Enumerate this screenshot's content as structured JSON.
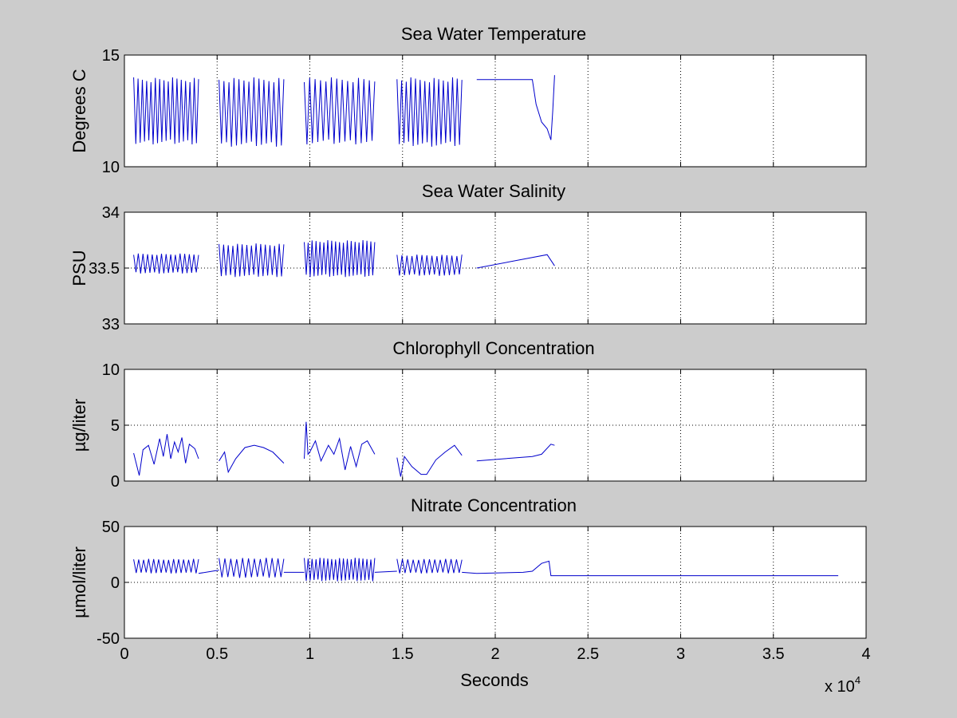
{
  "figure": {
    "background": "#cccccc",
    "axes_background": "#ffffff",
    "line_color": "#0000cc",
    "xlabel": "Seconds",
    "x_exponent_base": "x 10",
    "x_exponent_power": "4"
  },
  "chart_data": [
    {
      "type": "line",
      "title": "Sea Water Temperature",
      "ylabel": "Degrees C",
      "xlim": [
        0,
        40000
      ],
      "ylim": [
        10,
        15
      ],
      "xticks": [
        0,
        5000,
        10000,
        15000,
        20000,
        25000,
        30000,
        35000,
        40000
      ],
      "yticks": [
        10,
        15
      ],
      "ytick_labels": [
        "10",
        "15"
      ],
      "grid": true,
      "segments": [
        {
          "kind": "osc",
          "x": [
            500,
            4000
          ],
          "cycles": 15,
          "low": 11.0,
          "high": 14.0
        },
        {
          "kind": "osc",
          "x": [
            5100,
            8600
          ],
          "cycles": 13,
          "low": 10.9,
          "high": 14.0
        },
        {
          "kind": "osc",
          "x": [
            9700,
            13500
          ],
          "cycles": 13,
          "low": 11.0,
          "high": 14.0
        },
        {
          "kind": "osc",
          "x": [
            14700,
            18200
          ],
          "cycles": 14,
          "low": 10.9,
          "high": 14.0
        },
        {
          "kind": "line",
          "x": [
            19000,
            21500,
            22000,
            22200,
            22500,
            22800,
            23000,
            23100,
            23200
          ],
          "y": [
            13.9,
            13.9,
            13.9,
            12.8,
            12.0,
            11.7,
            11.2,
            12.5,
            14.1
          ]
        }
      ]
    },
    {
      "type": "line",
      "title": "Sea Water Salinity",
      "ylabel": "PSU",
      "xlim": [
        0,
        40000
      ],
      "ylim": [
        33,
        34
      ],
      "xticks": [
        0,
        5000,
        10000,
        15000,
        20000,
        25000,
        30000,
        35000,
        40000
      ],
      "yticks": [
        33,
        33.5,
        34
      ],
      "ytick_labels": [
        "33",
        "33.5",
        "34"
      ],
      "grid": true,
      "segments": [
        {
          "kind": "osc",
          "x": [
            500,
            4000
          ],
          "cycles": 14,
          "low": 33.45,
          "high": 33.63
        },
        {
          "kind": "osc",
          "x": [
            5100,
            8600
          ],
          "cycles": 14,
          "low": 33.42,
          "high": 33.72
        },
        {
          "kind": "osc",
          "x": [
            9700,
            13500
          ],
          "cycles": 18,
          "low": 33.42,
          "high": 33.75
        },
        {
          "kind": "osc",
          "x": [
            14700,
            18200
          ],
          "cycles": 13,
          "low": 33.43,
          "high": 33.62
        },
        {
          "kind": "line",
          "x": [
            19000,
            22800,
            23200
          ],
          "y": [
            33.5,
            33.62,
            33.52
          ]
        }
      ]
    },
    {
      "type": "line",
      "title": "Chlorophyll Concentration",
      "ylabel": "µg/liter",
      "xlim": [
        0,
        40000
      ],
      "ylim": [
        0,
        10
      ],
      "xticks": [
        0,
        5000,
        10000,
        15000,
        20000,
        25000,
        30000,
        35000,
        40000
      ],
      "yticks": [
        0,
        5,
        10
      ],
      "ytick_labels": [
        "0",
        "5",
        "10"
      ],
      "grid": true,
      "segments": [
        {
          "kind": "line",
          "x": [
            500,
            800,
            1000,
            1300,
            1600,
            1900,
            2100,
            2300,
            2500,
            2700,
            2900,
            3100,
            3300,
            3500,
            3800,
            4000
          ],
          "y": [
            2.5,
            0.5,
            2.8,
            3.2,
            1.5,
            3.8,
            2.2,
            4.2,
            2.0,
            3.5,
            2.6,
            3.9,
            1.6,
            3.3,
            2.9,
            2.0
          ]
        },
        {
          "kind": "line",
          "x": [
            5100,
            5400,
            5600,
            6000,
            6500,
            7000,
            7500,
            8000,
            8600
          ],
          "y": [
            1.8,
            2.6,
            0.8,
            2.0,
            3.0,
            3.2,
            3.0,
            2.6,
            1.6
          ]
        },
        {
          "kind": "line",
          "x": [
            9700,
            9800,
            9900,
            10000,
            10300,
            10600,
            11000,
            11300,
            11600,
            11900,
            12200,
            12500,
            12800,
            13100,
            13500
          ],
          "y": [
            2.0,
            5.3,
            2.4,
            2.6,
            3.6,
            1.8,
            3.2,
            2.4,
            3.8,
            1.0,
            3.1,
            1.3,
            3.3,
            3.6,
            2.4
          ]
        },
        {
          "kind": "line",
          "x": [
            14700,
            14900,
            15100,
            15500,
            16000,
            16300,
            16800,
            17300,
            17800,
            18200
          ],
          "y": [
            2.1,
            0.4,
            2.2,
            1.3,
            0.6,
            0.6,
            1.9,
            2.6,
            3.2,
            2.3
          ]
        },
        {
          "kind": "line",
          "x": [
            19000,
            20500,
            22000,
            22500,
            23000,
            23200
          ],
          "y": [
            1.8,
            2.0,
            2.2,
            2.4,
            3.3,
            3.2
          ]
        }
      ]
    },
    {
      "type": "line",
      "title": "Nitrate Concentration",
      "ylabel": "µmol/liter",
      "xlim": [
        0,
        40000
      ],
      "ylim": [
        -50,
        50
      ],
      "xticks": [
        0,
        5000,
        10000,
        15000,
        20000,
        25000,
        30000,
        35000,
        40000
      ],
      "xtick_labels": [
        "0",
        "0.5",
        "1",
        "1.5",
        "2",
        "2.5",
        "3",
        "3.5",
        "4"
      ],
      "yticks": [
        -50,
        0,
        50
      ],
      "ytick_labels": [
        "-50",
        "0",
        "50"
      ],
      "grid": true,
      "segments": [
        {
          "kind": "osc",
          "x": [
            500,
            4000
          ],
          "cycles": 13,
          "low": 8,
          "high": 21
        },
        {
          "kind": "line",
          "x": [
            4000,
            5100
          ],
          "y": [
            8,
            11
          ]
        },
        {
          "kind": "osc",
          "x": [
            5100,
            8600
          ],
          "cycles": 11,
          "low": 4,
          "high": 22
        },
        {
          "kind": "line",
          "x": [
            8600,
            9700
          ],
          "y": [
            9,
            9
          ]
        },
        {
          "kind": "osc",
          "x": [
            9700,
            13500
          ],
          "cycles": 18,
          "low": 1,
          "high": 22
        },
        {
          "kind": "line",
          "x": [
            13500,
            14700
          ],
          "y": [
            9,
            10
          ]
        },
        {
          "kind": "osc",
          "x": [
            14700,
            18200
          ],
          "cycles": 12,
          "low": 8,
          "high": 21
        },
        {
          "kind": "line",
          "x": [
            18200,
            19000,
            21500,
            22000,
            22500,
            22900,
            23000,
            25000,
            30000,
            35000,
            38500
          ],
          "y": [
            9,
            8,
            9,
            10,
            17,
            19,
            6,
            6,
            6,
            6,
            6
          ]
        }
      ]
    }
  ]
}
